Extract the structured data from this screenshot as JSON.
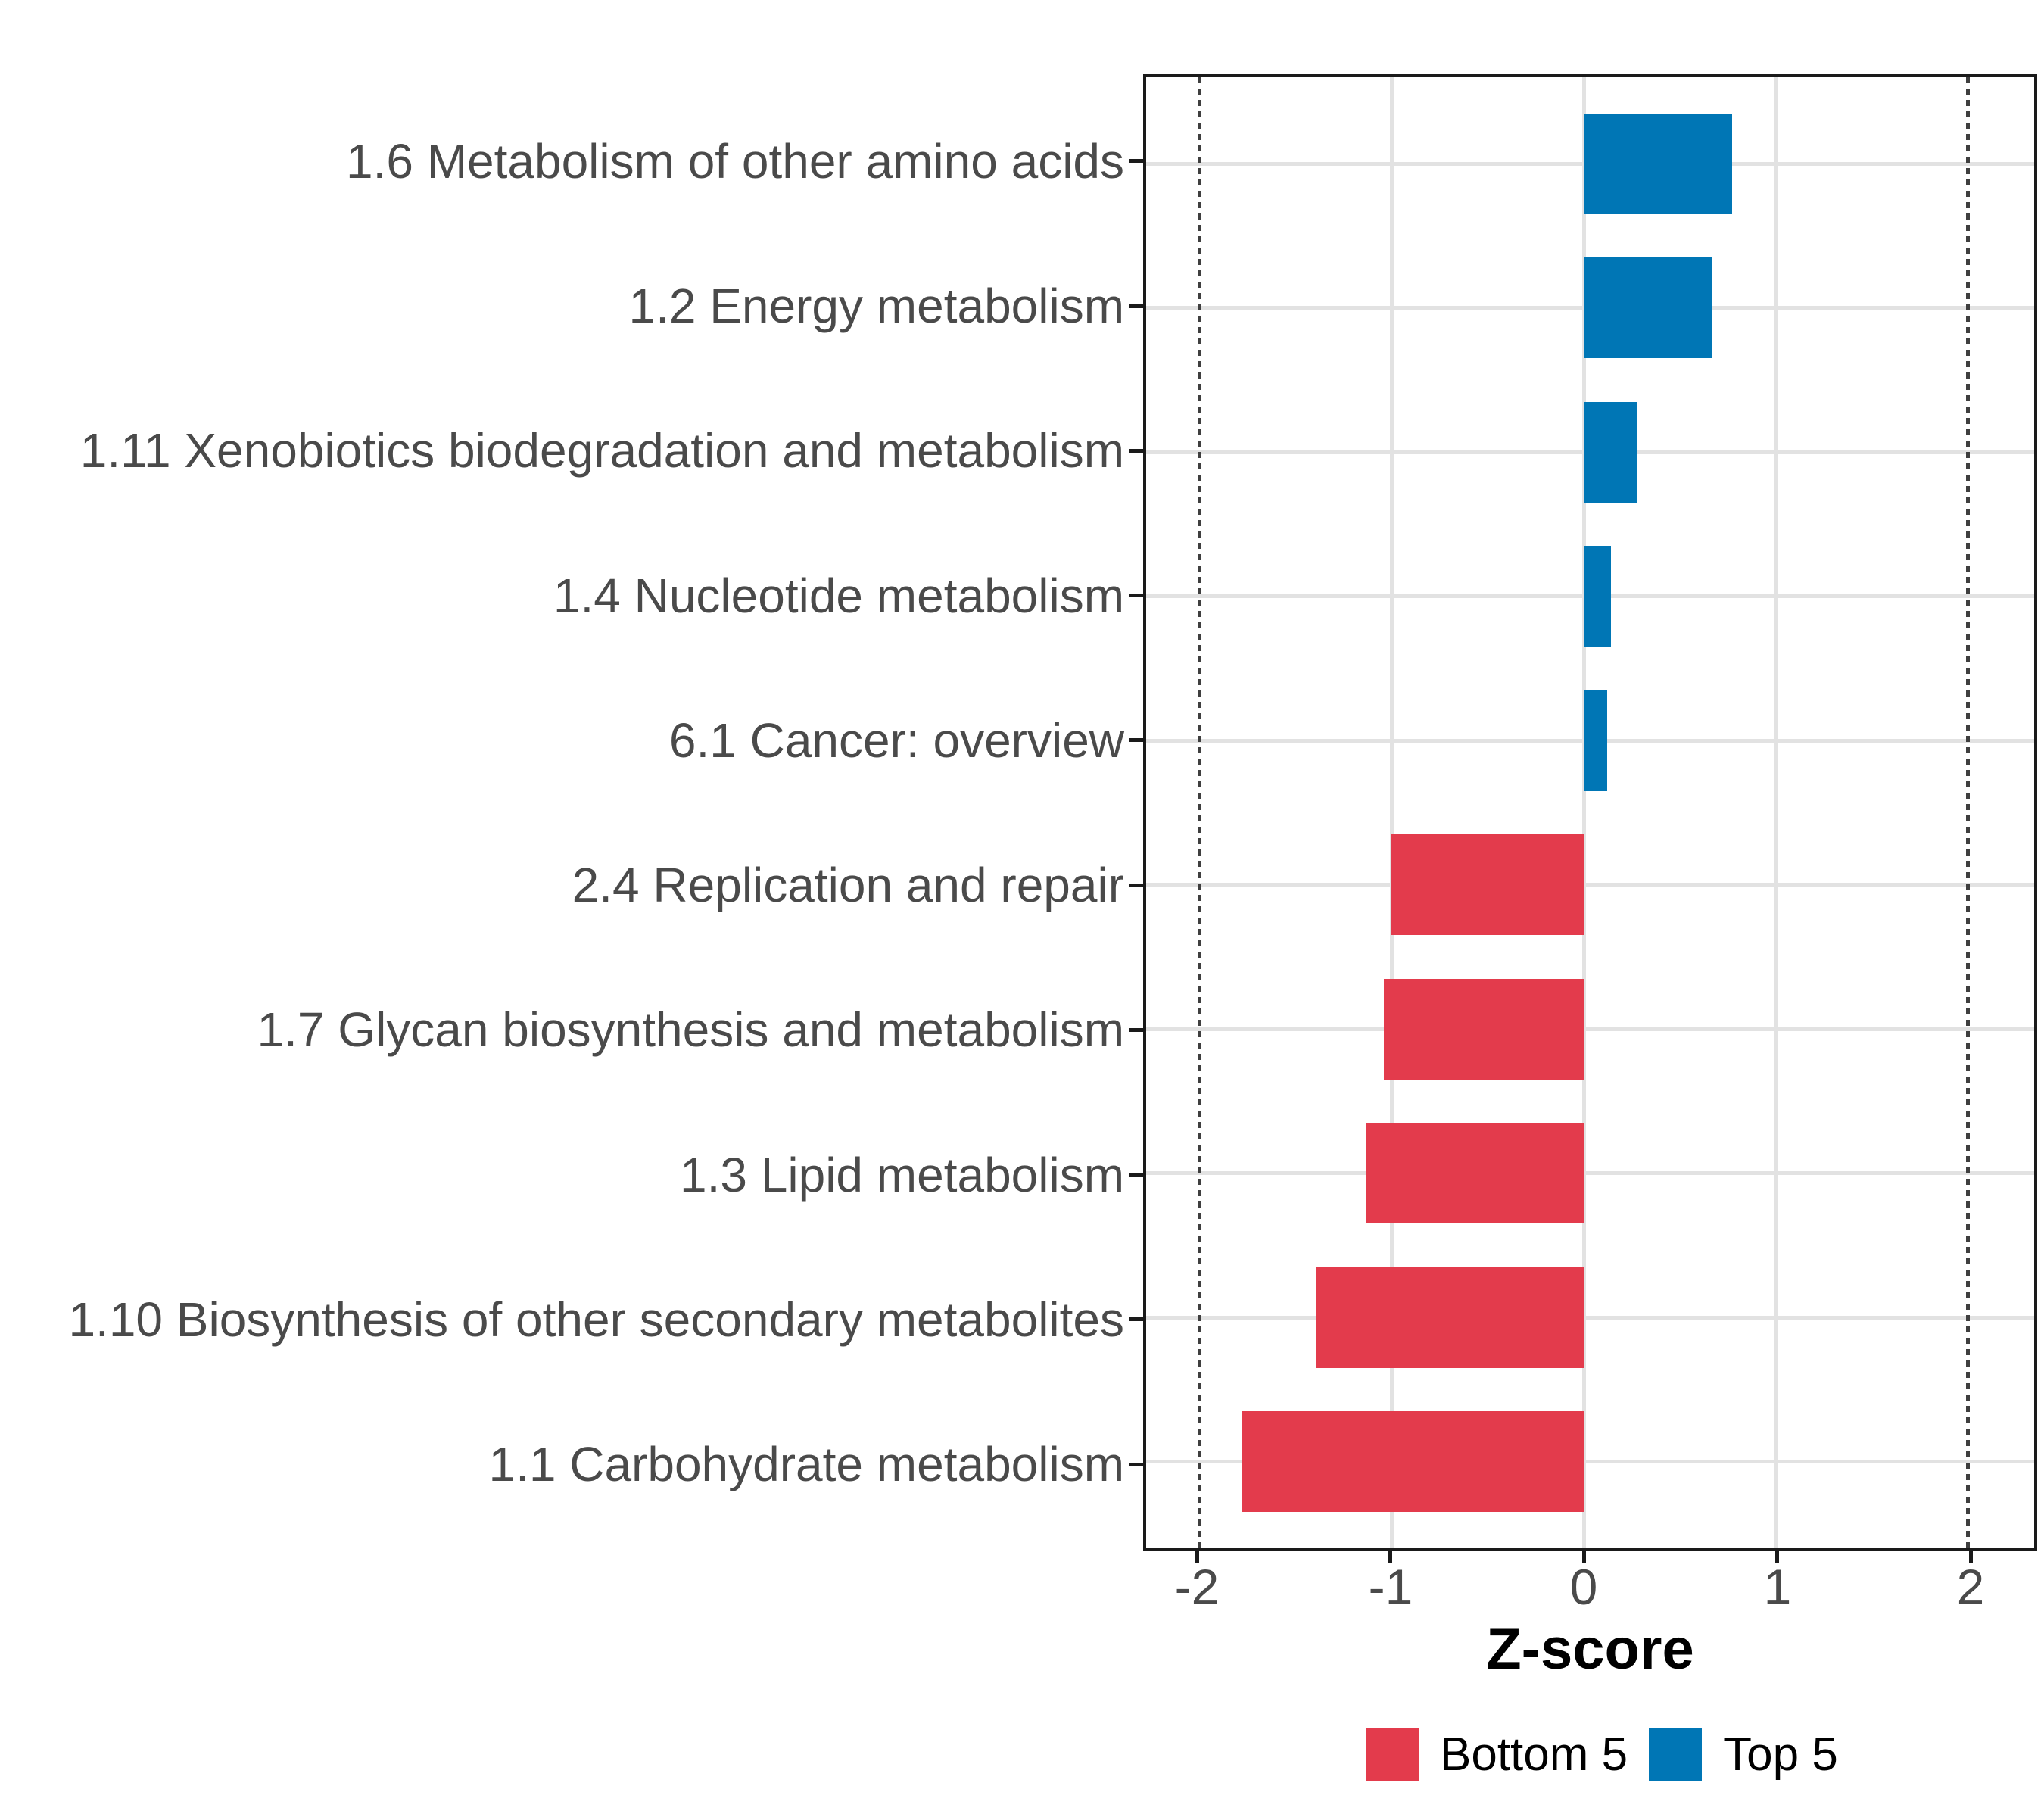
{
  "chart_data": {
    "type": "bar",
    "orientation": "horizontal",
    "title": "",
    "xlabel": "Z-score",
    "categories": [
      "1.6 Metabolism of other amino acids",
      "1.2 Energy metabolism",
      "1.11 Xenobiotics biodegradation and metabolism",
      "1.4 Nucleotide metabolism",
      "6.1 Cancer: overview",
      "2.4 Replication and repair",
      "1.7 Glycan biosynthesis and metabolism",
      "1.3 Lipid metabolism",
      "1.10 Biosynthesis of other secondary metabolites",
      "1.1 Carbohydrate metabolism"
    ],
    "series": [
      {
        "name": "Z-score",
        "values": [
          0.77,
          0.67,
          0.28,
          0.14,
          0.12,
          -1.0,
          -1.04,
          -1.13,
          -1.39,
          -1.78
        ]
      }
    ],
    "groups": [
      "Top 5",
      "Top 5",
      "Top 5",
      "Top 5",
      "Top 5",
      "Bottom 5",
      "Bottom 5",
      "Bottom 5",
      "Bottom 5",
      "Bottom 5"
    ],
    "group_colors": {
      "Bottom 5": "#e33b4c",
      "Top 5": "#0076b5"
    },
    "x_ticks": [
      "-2",
      "-1",
      "0",
      "1",
      "2"
    ],
    "x_tick_values": [
      -2,
      -1,
      0,
      1,
      2
    ],
    "xlim": [
      -2.278,
      2.344
    ],
    "x_major_gridline_values": [
      -1,
      0,
      1
    ],
    "reference_line_values": [
      -2,
      2
    ],
    "reference_line_style": "dotted",
    "grid": "major",
    "bar_width_fraction": 0.7,
    "legend_position": "bottom",
    "legend": [
      {
        "label": "Bottom 5",
        "color": "#e33b4c"
      },
      {
        "label": "Top 5",
        "color": "#0076b5"
      }
    ],
    "colors": {
      "axis_text": "#4a4a4a",
      "axis_title": "#000000",
      "panel_border": "#1a1a1a",
      "gridline": "#e2e2e2",
      "reference_line": "#3f3f3f",
      "background": "#ffffff"
    }
  }
}
